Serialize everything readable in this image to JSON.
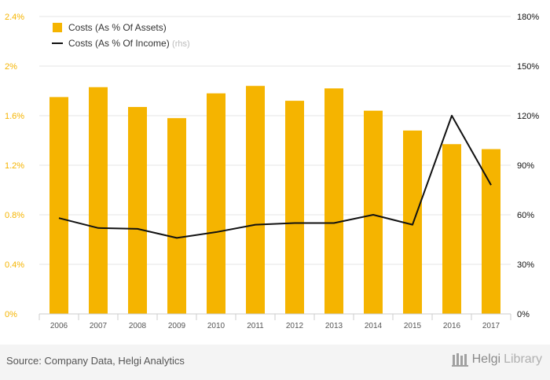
{
  "chart_data": {
    "type": "bar+line",
    "categories": [
      "2006",
      "2007",
      "2008",
      "2009",
      "2010",
      "2011",
      "2012",
      "2013",
      "2014",
      "2015",
      "2016",
      "2017"
    ],
    "series": [
      {
        "name": "Costs (As % Of Assets)",
        "type": "bar",
        "axis": "left",
        "color": "#f5b400",
        "values": [
          1.75,
          1.83,
          1.67,
          1.58,
          1.78,
          1.84,
          1.72,
          1.82,
          1.64,
          1.48,
          1.37,
          1.33
        ]
      },
      {
        "name": "Costs (As % Of Income)",
        "legend_suffix": "(rhs)",
        "type": "line",
        "axis": "right",
        "color": "#111111",
        "values": [
          58,
          52,
          51.5,
          46,
          49.5,
          54,
          55,
          55,
          60,
          54,
          120,
          78
        ]
      }
    ],
    "left_axis": {
      "ylim": [
        0,
        2.4
      ],
      "ticks": [
        {
          "value": 0,
          "label": "0%"
        },
        {
          "value": 0.4,
          "label": "0.4%"
        },
        {
          "value": 0.8,
          "label": "0.8%"
        },
        {
          "value": 1.2,
          "label": "1.2%"
        },
        {
          "value": 1.6,
          "label": "1.6%"
        },
        {
          "value": 2.0,
          "label": "2%"
        },
        {
          "value": 2.4,
          "label": "2.4%"
        }
      ],
      "color": "#f5b400"
    },
    "right_axis": {
      "ylim": [
        0,
        180
      ],
      "ticks": [
        {
          "value": 0,
          "label": "0%"
        },
        {
          "value": 30,
          "label": "30%"
        },
        {
          "value": 60,
          "label": "60%"
        },
        {
          "value": 90,
          "label": "90%"
        },
        {
          "value": 120,
          "label": "120%"
        },
        {
          "value": 150,
          "label": "150%"
        },
        {
          "value": 180,
          "label": "180%"
        }
      ],
      "color": "#111111"
    },
    "grid": true,
    "legend_position": "top-left"
  },
  "footer": {
    "source": "Source: Company Data, Helgi Analytics",
    "brand_first": "Helgi",
    "brand_second": "Library",
    "brand_icon": "library-columns-icon"
  },
  "colors": {
    "bar": "#f5b400",
    "line": "#111111",
    "grid": "#e6e6e6",
    "axis_label": "#555555"
  }
}
